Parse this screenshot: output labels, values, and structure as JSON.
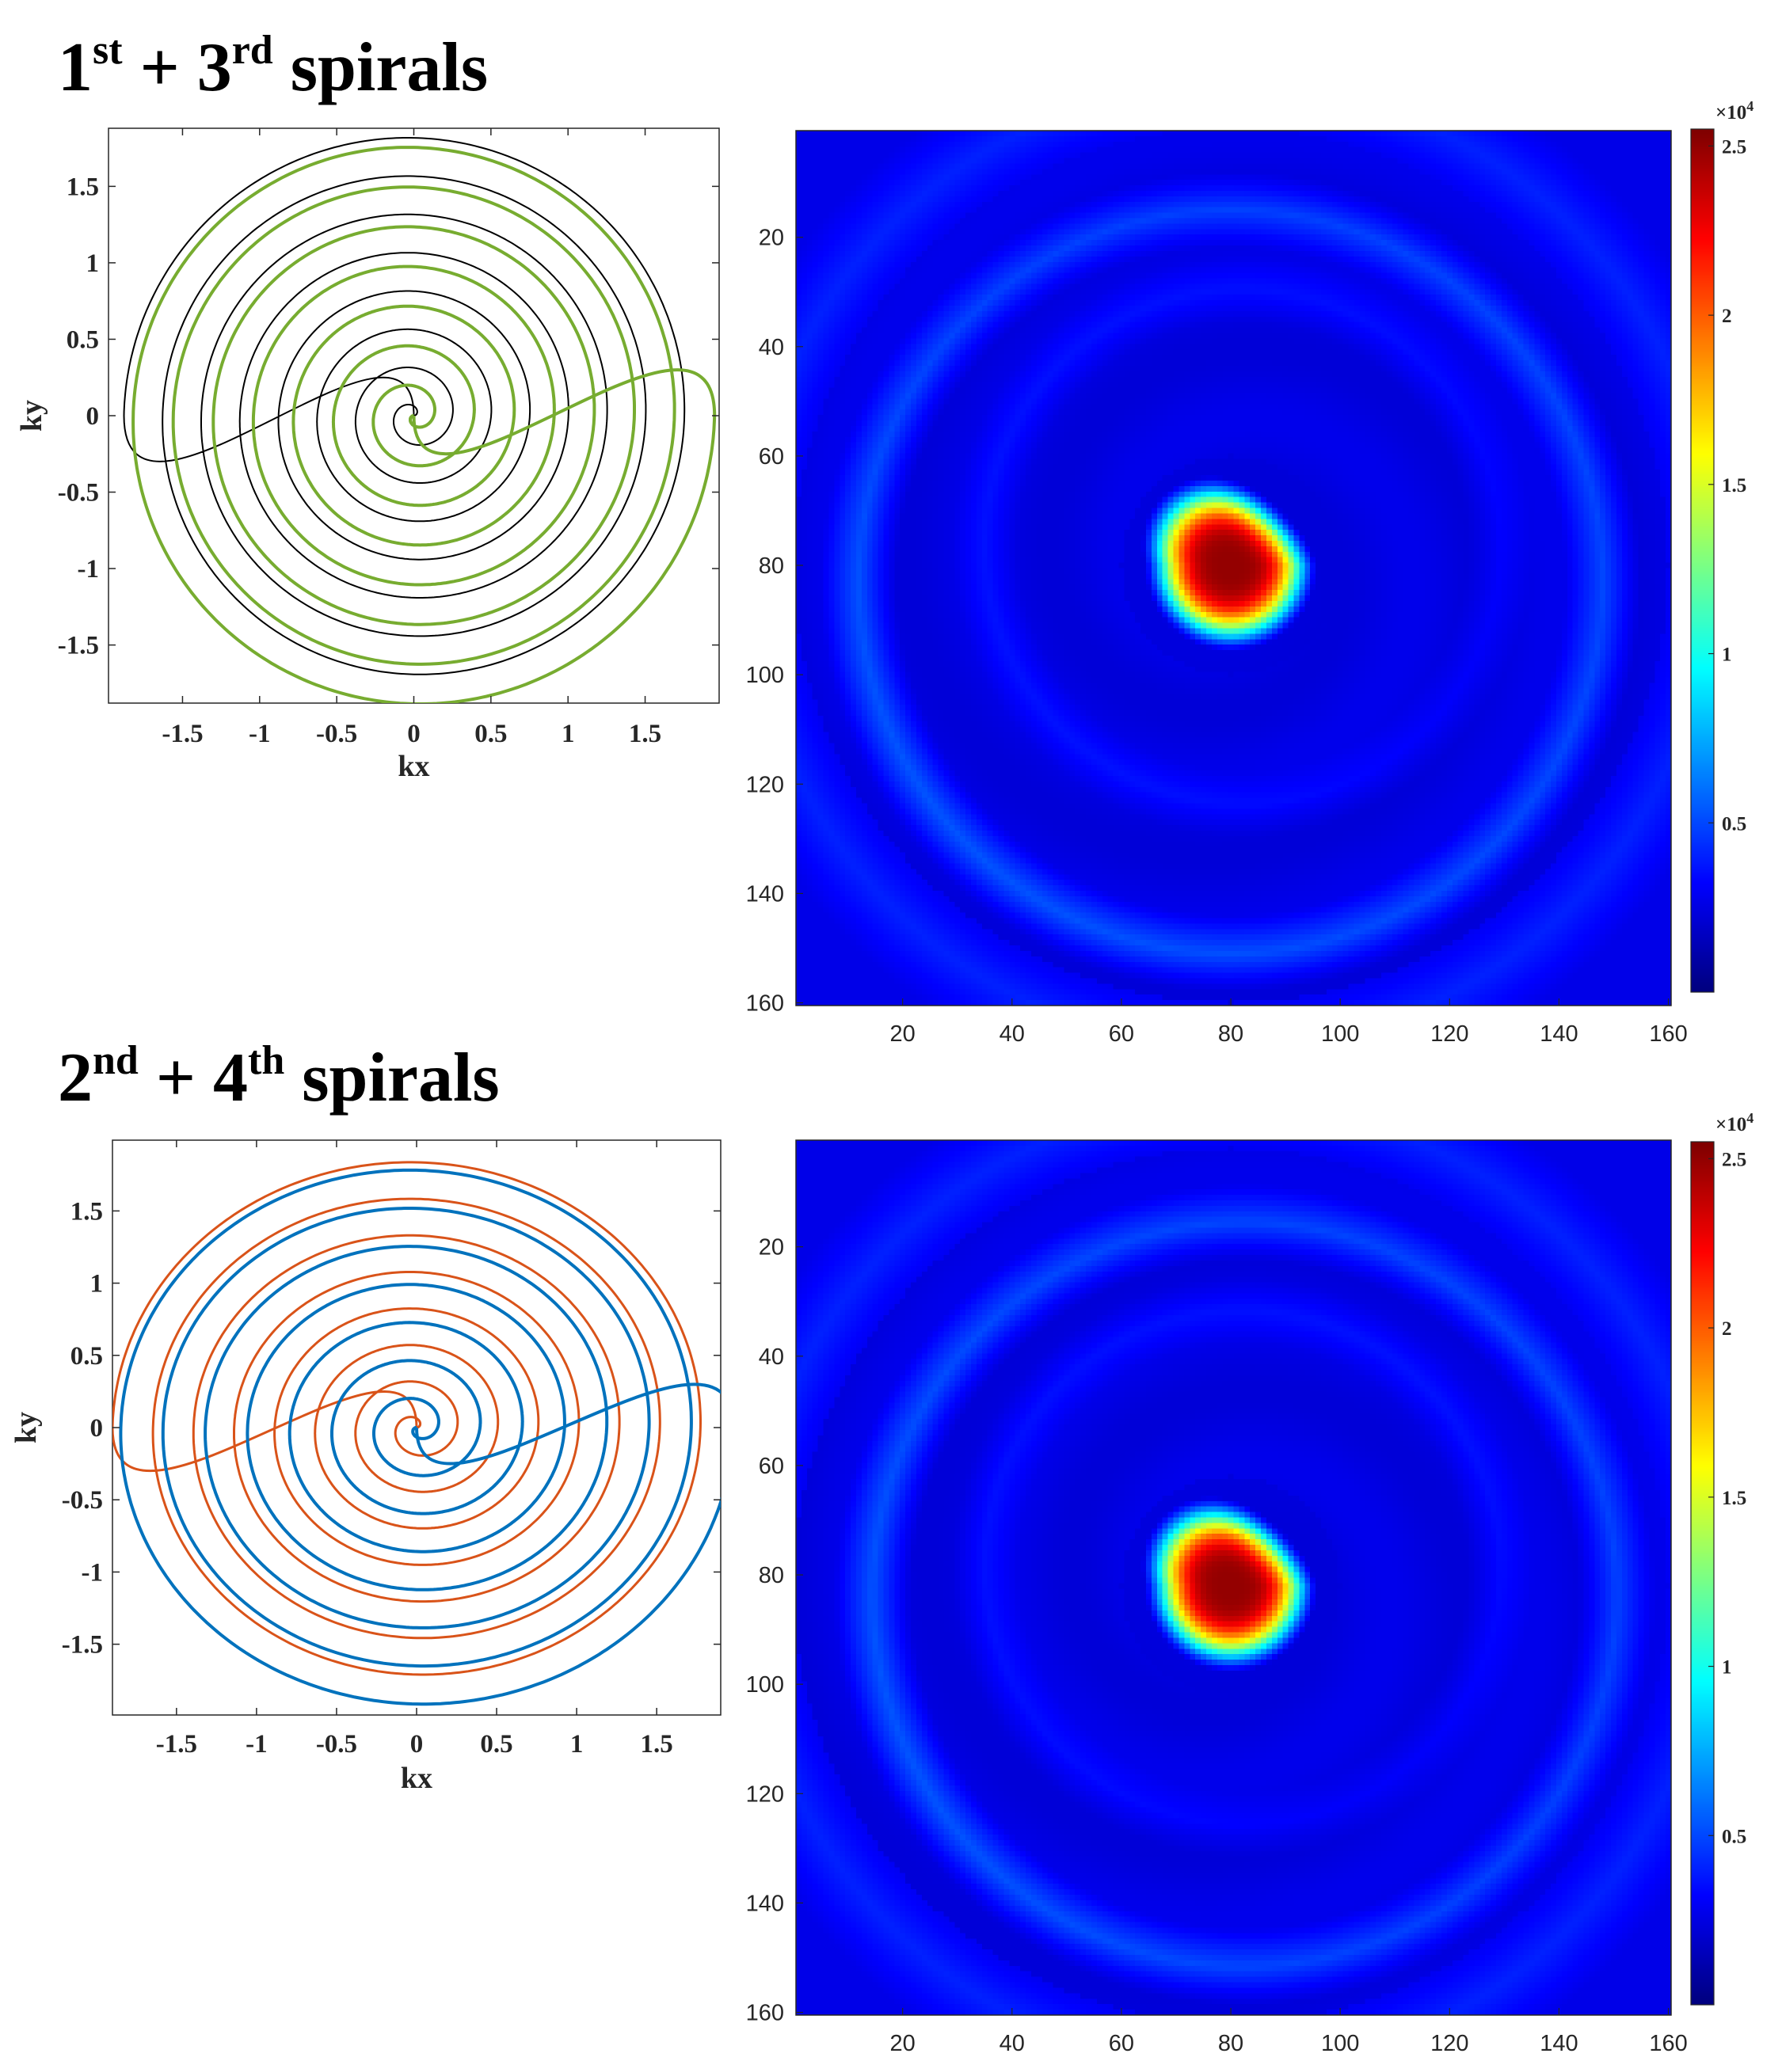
{
  "panels": [
    {
      "title": {
        "n1": "1",
        "s1": "st",
        "plus": " + ",
        "n2": "3",
        "s2": "rd",
        "word": " spirals"
      },
      "spiral": {
        "type": "line",
        "xlabel": "kx",
        "ylabel": "ky",
        "xlim": [
          -1.98,
          1.98
        ],
        "ylim": [
          -1.88,
          1.88
        ],
        "xticks": [
          -1.5,
          -1,
          -0.5,
          0,
          0.5,
          1,
          1.5
        ],
        "xtick_labels": [
          "-1.5",
          "-1",
          "-0.5",
          "0",
          "0.5",
          "1",
          "1.5"
        ],
        "yticks": [
          1.5,
          1,
          0.5,
          0,
          -0.5,
          -1,
          -1.5
        ],
        "ytick_labels": [
          "1.5",
          "1",
          "0.5",
          "0",
          "-0.5",
          "-1",
          "-1.5"
        ],
        "series": [
          {
            "color": "#000000",
            "rotation_deg": 0,
            "max_radius": 1.88,
            "turns": 7.5,
            "stroke": 2
          },
          {
            "color": "#77ac30",
            "rotation_deg": 180,
            "max_radius": 1.95,
            "turns": 7.5,
            "stroke": 4
          }
        ]
      },
      "heatmap": {
        "type": "heatmap",
        "size": 160,
        "xticks": [
          20,
          40,
          60,
          80,
          100,
          120,
          140,
          160
        ],
        "xtick_labels": [
          "20",
          "40",
          "60",
          "80",
          "100",
          "120",
          "140",
          "160"
        ],
        "yticks": [
          20,
          40,
          60,
          80,
          100,
          120,
          140,
          160
        ],
        "ytick_labels": [
          "20",
          "40",
          "60",
          "80",
          "100",
          "120",
          "140",
          "160"
        ],
        "clim": [
          0,
          25500
        ],
        "peak": 25000,
        "center": [
          80,
          80
        ],
        "colorbar_ticks": [
          0.5,
          1,
          1.5,
          2,
          2.5
        ],
        "colorbar_tick_labels": [
          "0.5",
          "1",
          "1.5",
          "2",
          "2.5"
        ],
        "colorbar_exponent": {
          "base": "×10",
          "exp": "4"
        }
      }
    },
    {
      "title": {
        "n1": "2",
        "s1": "nd",
        "plus": " + ",
        "n2": "4",
        "s2": "th",
        "word": " spirals"
      },
      "spiral": {
        "type": "line",
        "xlabel": "kx",
        "ylabel": "ky",
        "xlim": [
          -1.9,
          1.9
        ],
        "ylim": [
          -1.99,
          1.99
        ],
        "xticks": [
          -1.5,
          -1,
          -0.5,
          0,
          0.5,
          1,
          1.5
        ],
        "xtick_labels": [
          "-1.5",
          "-1",
          "-0.5",
          "0",
          "0.5",
          "1",
          "1.5"
        ],
        "yticks": [
          1.5,
          1,
          0.5,
          0,
          -0.5,
          -1,
          -1.5
        ],
        "ytick_labels": [
          "1.5",
          "1",
          "0.5",
          "0",
          "-0.5",
          "-1",
          "-1.5"
        ],
        "series": [
          {
            "color": "#d95319",
            "rotation_deg": 0,
            "max_radius": 1.9,
            "turns": 7.5,
            "stroke": 3
          },
          {
            "color": "#0072bd",
            "rotation_deg": 180,
            "max_radius": 1.98,
            "turns": 7.5,
            "stroke": 4
          }
        ]
      },
      "heatmap": {
        "type": "heatmap",
        "size": 160,
        "xticks": [
          20,
          40,
          60,
          80,
          100,
          120,
          140,
          160
        ],
        "xtick_labels": [
          "20",
          "40",
          "60",
          "80",
          "100",
          "120",
          "140",
          "160"
        ],
        "yticks": [
          20,
          40,
          60,
          80,
          100,
          120,
          140,
          160
        ],
        "ytick_labels": [
          "20",
          "40",
          "60",
          "80",
          "100",
          "120",
          "140",
          "160"
        ],
        "clim": [
          0,
          25500
        ],
        "peak": 25000,
        "center": [
          80,
          82
        ],
        "colorbar_ticks": [
          0.5,
          1,
          1.5,
          2,
          2.5
        ],
        "colorbar_tick_labels": [
          "0.5",
          "1",
          "1.5",
          "2",
          "2.5"
        ],
        "colorbar_exponent": {
          "base": "×10",
          "exp": "4"
        }
      }
    }
  ]
}
